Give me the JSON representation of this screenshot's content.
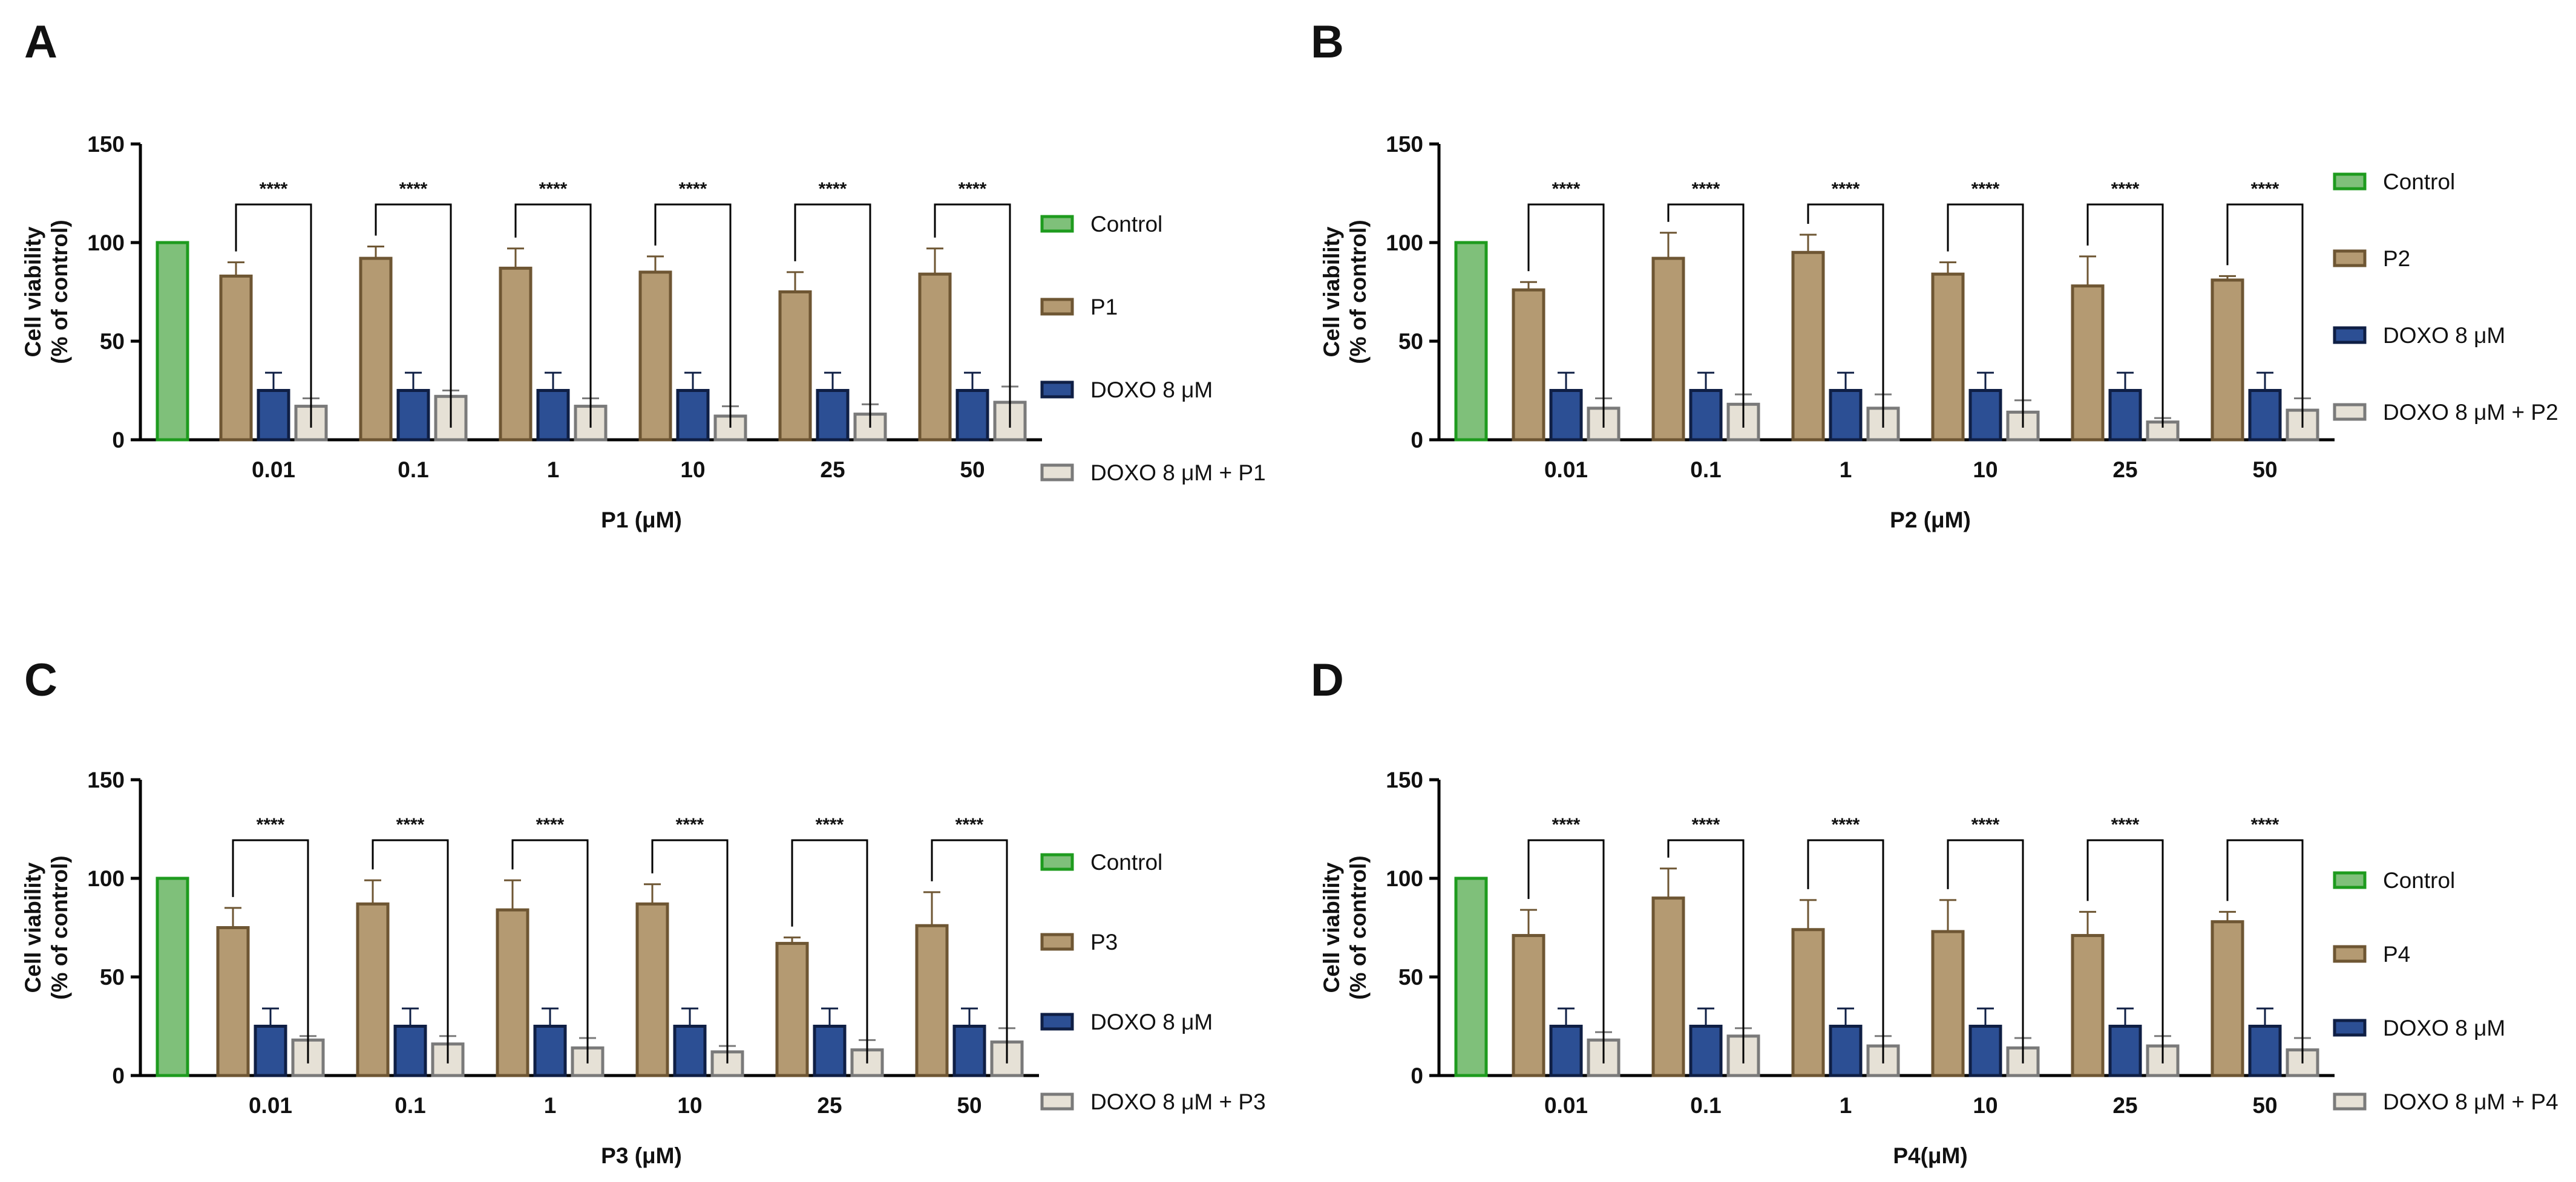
{
  "colors": {
    "control_fill": "#7fc07a",
    "control_edge": "#1e9b1e",
    "compound_fill": "#b49a72",
    "compound_edge": "#6e5633",
    "doxo_fill": "#2c4f94",
    "doxo_edge": "#0f1f45",
    "combo_fill": "#e6e1d6",
    "combo_edge": "#7a7a7a",
    "axis": "#000000"
  },
  "chart_data": [
    {
      "panel": "A",
      "type": "bar",
      "ylabel": "Cell viability\n(% of control)",
      "xlabel": "P1 (μM)",
      "ylim": [
        0,
        150
      ],
      "yticks": [
        0,
        50,
        100,
        150
      ],
      "control_value": 100,
      "categories": [
        "0.01",
        "0.1",
        "1",
        "10",
        "25",
        "50"
      ],
      "series": [
        {
          "name": "P1",
          "role": "compound",
          "values": [
            83,
            92,
            87,
            85,
            75,
            84
          ],
          "errors": [
            7,
            6,
            10,
            8,
            10,
            13
          ]
        },
        {
          "name": "DOXO 8 μM",
          "role": "doxo",
          "values": [
            25,
            25,
            25,
            25,
            25,
            25
          ],
          "errors": [
            9,
            9,
            9,
            9,
            9,
            9
          ]
        },
        {
          "name": "DOXO 8 μM + P1",
          "role": "combo",
          "values": [
            17,
            22,
            17,
            12,
            13,
            19
          ],
          "errors": [
            4,
            3,
            4,
            5,
            5,
            8
          ]
        }
      ],
      "legend": [
        "Control",
        "P1",
        "DOXO 8 μM",
        "DOXO 8 μM + P1"
      ],
      "significance": [
        "****",
        "****",
        "****",
        "****",
        "****",
        "****"
      ]
    },
    {
      "panel": "B",
      "type": "bar",
      "ylabel": "Cell viability\n(% of control)",
      "xlabel": "P2 (μM)",
      "ylim": [
        0,
        150
      ],
      "yticks": [
        0,
        50,
        100,
        150
      ],
      "control_value": 100,
      "categories": [
        "0.01",
        "0.1",
        "1",
        "10",
        "25",
        "50"
      ],
      "series": [
        {
          "name": "P2",
          "role": "compound",
          "values": [
            76,
            92,
            95,
            84,
            78,
            81
          ],
          "errors": [
            4,
            13,
            9,
            6,
            15,
            2
          ]
        },
        {
          "name": "DOXO 8 μM",
          "role": "doxo",
          "values": [
            25,
            25,
            25,
            25,
            25,
            25
          ],
          "errors": [
            9,
            9,
            9,
            9,
            9,
            9
          ]
        },
        {
          "name": "DOXO 8 μM +  P2",
          "role": "combo",
          "values": [
            16,
            18,
            16,
            14,
            9,
            15
          ],
          "errors": [
            5,
            5,
            7,
            6,
            2,
            6
          ]
        }
      ],
      "legend": [
        "Control",
        "P2",
        "DOXO 8 μM",
        "DOXO 8 μM +  P2"
      ],
      "significance": [
        "****",
        "****",
        "****",
        "****",
        "****",
        "****"
      ]
    },
    {
      "panel": "C",
      "type": "bar",
      "ylabel": "Cell viability\n(% of control)",
      "xlabel": "P3 (μM)",
      "ylim": [
        0,
        150
      ],
      "yticks": [
        0,
        50,
        100,
        150
      ],
      "control_value": 100,
      "categories": [
        "0.01",
        "0.1",
        "1",
        "10",
        "25",
        "50"
      ],
      "series": [
        {
          "name": "P3",
          "role": "compound",
          "values": [
            75,
            87,
            84,
            87,
            67,
            76
          ],
          "errors": [
            10,
            12,
            15,
            10,
            3,
            17
          ]
        },
        {
          "name": "DOXO 8 μM",
          "role": "doxo",
          "values": [
            25,
            25,
            25,
            25,
            25,
            25
          ],
          "errors": [
            9,
            9,
            9,
            9,
            9,
            9
          ]
        },
        {
          "name": "DOXO 8 μM + P3",
          "role": "combo",
          "values": [
            18,
            16,
            14,
            12,
            13,
            17
          ],
          "errors": [
            2,
            4,
            5,
            3,
            5,
            7
          ]
        }
      ],
      "legend": [
        "Control",
        "P3",
        "DOXO 8 μM",
        "DOXO 8 μM + P3"
      ],
      "significance": [
        "****",
        "****",
        "****",
        "****",
        "****",
        "****"
      ]
    },
    {
      "panel": "D",
      "type": "bar",
      "ylabel": "Cell viability\n(% of control)",
      "xlabel": "P4(μM)",
      "ylim": [
        0,
        150
      ],
      "yticks": [
        0,
        50,
        100,
        150
      ],
      "control_value": 100,
      "categories": [
        "0.01",
        "0.1",
        "1",
        "10",
        "25",
        "50"
      ],
      "series": [
        {
          "name": "P4",
          "role": "compound",
          "values": [
            71,
            90,
            74,
            73,
            71,
            78
          ],
          "errors": [
            13,
            15,
            15,
            16,
            12,
            5
          ]
        },
        {
          "name": "DOXO 8 μM",
          "role": "doxo",
          "values": [
            25,
            25,
            25,
            25,
            25,
            25
          ],
          "errors": [
            9,
            9,
            9,
            9,
            9,
            9
          ]
        },
        {
          "name": "DOXO 8 μM + P4",
          "role": "combo",
          "values": [
            18,
            20,
            15,
            14,
            15,
            13
          ],
          "errors": [
            4,
            4,
            5,
            5,
            5,
            6
          ]
        }
      ],
      "legend": [
        "Control",
        "P4",
        "DOXO 8 μM",
        "DOXO 8 μM + P4"
      ],
      "significance": [
        "****",
        "****",
        "****",
        "****",
        "****",
        "****"
      ]
    }
  ]
}
